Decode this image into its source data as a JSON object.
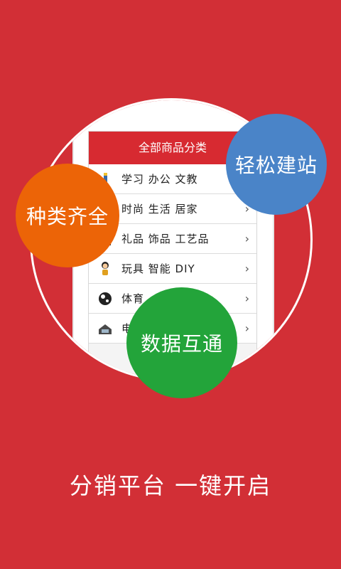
{
  "phone_screen": {
    "title": "全部商品分类",
    "categories": [
      {
        "label": "学习 办公 文教",
        "icon": "pencil-icon"
      },
      {
        "label": "时尚 生活 居家",
        "icon": "shirt-icon"
      },
      {
        "label": "礼品 饰品 工艺品",
        "icon": "gift-icon"
      },
      {
        "label": "玩具 智能 DIY",
        "icon": "doll-icon"
      },
      {
        "label": "体育",
        "icon": "soccer-ball-icon"
      },
      {
        "label": "电",
        "icon": "appliance-icon"
      }
    ],
    "arrow": "›"
  },
  "bubbles": {
    "variety": "种类齐全",
    "site_building": "轻松建站",
    "data_sync": "数据互通"
  },
  "slogan": "分销平台  一键开启",
  "colors": {
    "background": "#d22f36",
    "header_red": "#d72a31",
    "orange": "#ec6407",
    "blue": "#4a84c8",
    "green": "#23a43a"
  }
}
